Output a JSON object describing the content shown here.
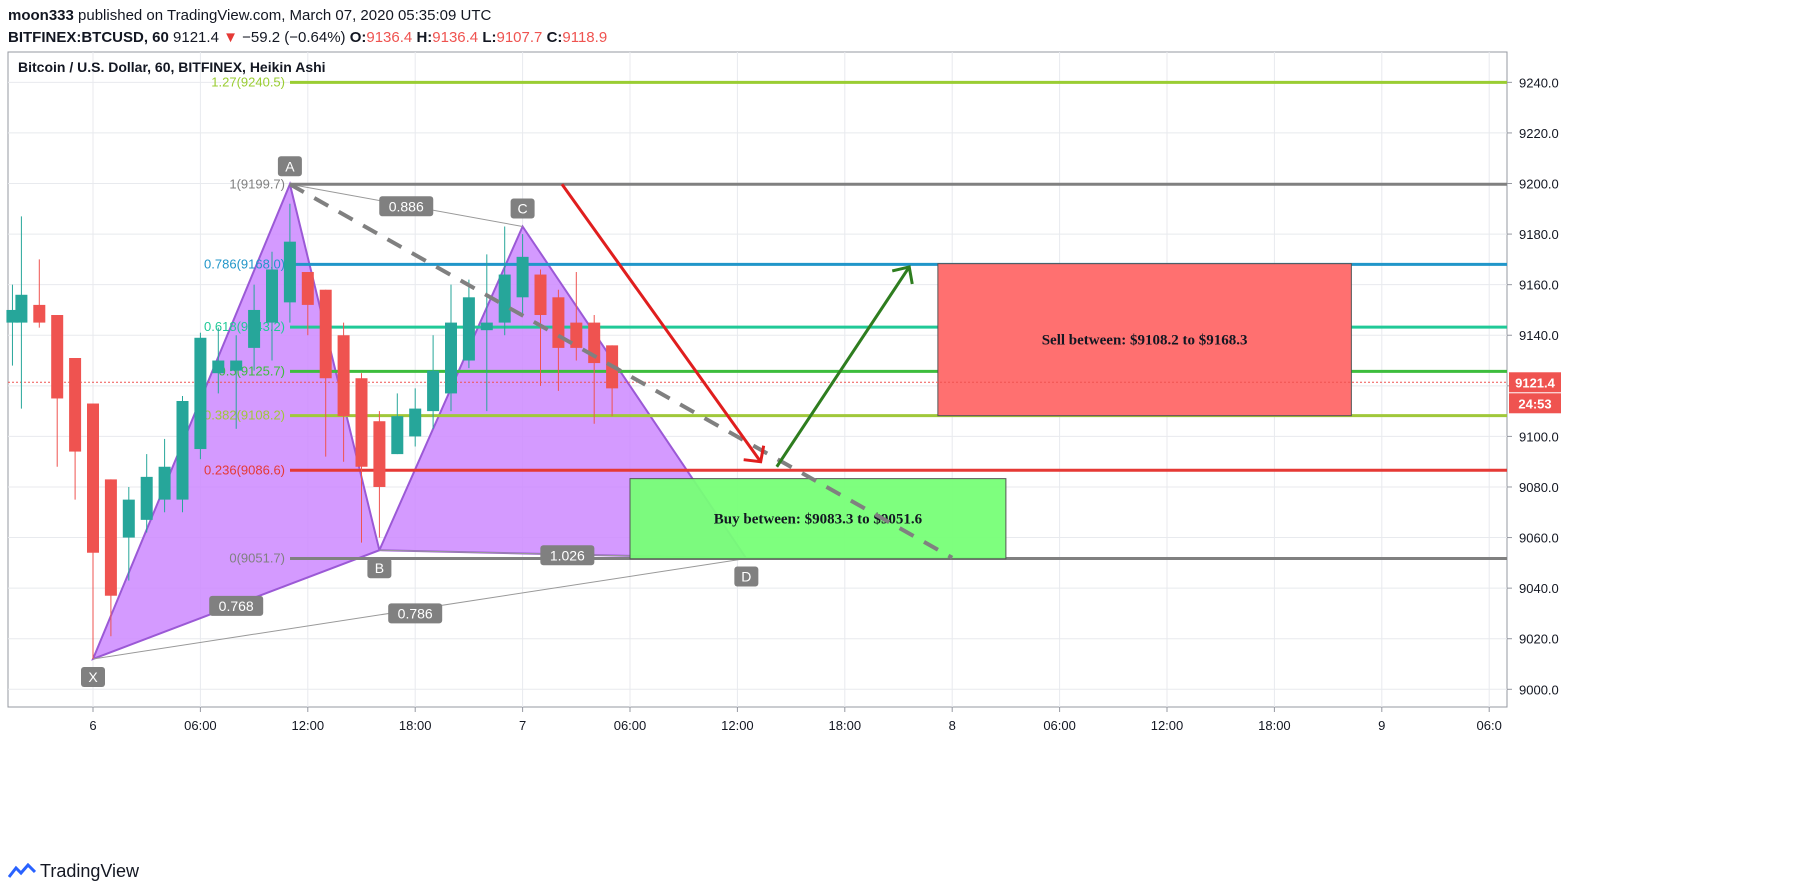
{
  "header": {
    "author": "moon333",
    "published_text": "published on TradingView.com, March 07, 2020 05:35:09 UTC",
    "symbol": "BITFINEX:BTCUSD, 60",
    "last": "9121.4",
    "change": "−59.2 (−0.64%)",
    "o_label": "O:",
    "o_value": "9136.4",
    "h_label": "H:",
    "h_value": "9136.4",
    "l_label": "L:",
    "l_value": "9107.7",
    "c_label": "C:",
    "c_value": "9118.9"
  },
  "legend_title": "Bitcoin / U.S. Dollar, 60, BITFINEX, Heikin Ashi",
  "footer": {
    "brand": "TradingView"
  },
  "price_badges": {
    "last": "9121.4",
    "countdown": "24:53"
  },
  "colors": {
    "bull": "#26a69a",
    "bear": "#ef5350",
    "bull_body_dark": "#5c6bc0",
    "bear_body_dark": "#c2185b",
    "pattern_fill": "#cc88ff",
    "sell_zone": "#ff7070",
    "buy_zone": "#77ff77",
    "fib_0786": "#2196c9",
    "fib_0618": "#20c997",
    "fib_05": "#3dbd3d",
    "fib_0382": "#a0c83a",
    "fib_0236": "#e53935",
    "fib_1": "#808080",
    "fib_0": "#808080",
    "fib_top": "#9acd32"
  },
  "chart_data": {
    "type": "candlestick",
    "title": "Bitcoin / U.S. Dollar, 60, BITFINEX, Heikin Ashi",
    "ylim": [
      8993,
      9252
    ],
    "y_ticks": [
      9000,
      9020,
      9040,
      9060,
      9080,
      9100,
      9120,
      9140,
      9160,
      9180,
      9200,
      9220,
      9240
    ],
    "y_tick_labels": [
      "9000.0",
      "9020.0",
      "9040.0",
      "9060.0",
      "9080.0",
      "9100.0",
      "9120.0",
      "9140.0",
      "9160.0",
      "9180.0",
      "9200.0",
      "9220.0",
      "9240.0"
    ],
    "x_ticks": [
      {
        "bar": 0,
        "label": "6"
      },
      {
        "bar": 6,
        "label": "06:00"
      },
      {
        "bar": 12,
        "label": "12:00"
      },
      {
        "bar": 18,
        "label": "18:00"
      },
      {
        "bar": 24,
        "label": "7"
      },
      {
        "bar": 30,
        "label": "06:00"
      },
      {
        "bar": 36,
        "label": "12:00"
      },
      {
        "bar": 42,
        "label": "18:00"
      },
      {
        "bar": 48,
        "label": "8"
      },
      {
        "bar": 54,
        "label": "06:00"
      },
      {
        "bar": 60,
        "label": "12:00"
      },
      {
        "bar": 66,
        "label": "18:00"
      },
      {
        "bar": 72,
        "label": "9"
      },
      {
        "bar": 78,
        "label": "06:0"
      }
    ],
    "candles": [
      {
        "t": -4.5,
        "o": 9145,
        "h": 9160,
        "l": 9128,
        "c": 9150
      },
      {
        "t": -4,
        "o": 9145,
        "h": 9187,
        "l": 9111,
        "c": 9156
      },
      {
        "t": -3,
        "o": 9152,
        "h": 9170,
        "l": 9143,
        "c": 9145
      },
      {
        "t": -2,
        "o": 9148,
        "h": 9148,
        "l": 9088,
        "c": 9115
      },
      {
        "t": -1,
        "o": 9131,
        "h": 9131,
        "l": 9075,
        "c": 9094
      },
      {
        "t": 0,
        "o": 9113,
        "h": 9113,
        "l": 9012,
        "c": 9054
      },
      {
        "t": 1,
        "o": 9083,
        "h": 9083,
        "l": 9021,
        "c": 9037
      },
      {
        "t": 2,
        "o": 9060,
        "h": 9080,
        "l": 9043,
        "c": 9075
      },
      {
        "t": 3,
        "o": 9067,
        "h": 9093,
        "l": 9062,
        "c": 9084
      },
      {
        "t": 4,
        "o": 9075,
        "h": 9099,
        "l": 9070,
        "c": 9088
      },
      {
        "t": 5,
        "o": 9075,
        "h": 9116,
        "l": 9070,
        "c": 9114
      },
      {
        "t": 6,
        "o": 9095,
        "h": 9141,
        "l": 9091,
        "c": 9139
      },
      {
        "t": 7,
        "o": 9125,
        "h": 9143,
        "l": 9117,
        "c": 9130
      },
      {
        "t": 8,
        "o": 9126,
        "h": 9140,
        "l": 9103,
        "c": 9130
      },
      {
        "t": 9,
        "o": 9135,
        "h": 9160,
        "l": 9126,
        "c": 9150
      },
      {
        "t": 10,
        "o": 9145,
        "h": 9173,
        "l": 9130,
        "c": 9166
      },
      {
        "t": 11,
        "o": 9153,
        "h": 9192,
        "l": 9145,
        "c": 9177
      },
      {
        "t": 12,
        "o": 9165,
        "h": 9165,
        "l": 9140,
        "c": 9152
      },
      {
        "t": 13,
        "o": 9158,
        "h": 9158,
        "l": 9092,
        "c": 9123
      },
      {
        "t": 14,
        "o": 9140,
        "h": 9145,
        "l": 9090,
        "c": 9108
      },
      {
        "t": 15,
        "o": 9123,
        "h": 9125,
        "l": 9058,
        "c": 9088
      },
      {
        "t": 16,
        "o": 9106,
        "h": 9110,
        "l": 9060,
        "c": 9080
      },
      {
        "t": 17,
        "o": 9093,
        "h": 9117,
        "l": 9093,
        "c": 9108
      },
      {
        "t": 18,
        "o": 9100,
        "h": 9119,
        "l": 9096,
        "c": 9111
      },
      {
        "t": 19,
        "o": 9110,
        "h": 9140,
        "l": 9103,
        "c": 9126
      },
      {
        "t": 20,
        "o": 9117,
        "h": 9160,
        "l": 9110,
        "c": 9145
      },
      {
        "t": 21,
        "o": 9130,
        "h": 9162,
        "l": 9127,
        "c": 9155
      },
      {
        "t": 22,
        "o": 9142,
        "h": 9172,
        "l": 9110,
        "c": 9145
      },
      {
        "t": 23,
        "o": 9145,
        "h": 9183,
        "l": 9140,
        "c": 9164
      },
      {
        "t": 24,
        "o": 9155,
        "h": 9180,
        "l": 9148,
        "c": 9171
      },
      {
        "t": 25,
        "o": 9164,
        "h": 9166,
        "l": 9120,
        "c": 9148
      },
      {
        "t": 26,
        "o": 9155,
        "h": 9158,
        "l": 9118,
        "c": 9135
      },
      {
        "t": 27,
        "o": 9145,
        "h": 9165,
        "l": 9130,
        "c": 9135
      },
      {
        "t": 28,
        "o": 9145,
        "h": 9148,
        "l": 9105,
        "c": 9129
      },
      {
        "t": 29,
        "o": 9136,
        "h": 9136,
        "l": 9108,
        "c": 9119
      }
    ],
    "fib_levels": [
      {
        "ratio": "1",
        "value": 9199.7,
        "label": "1(9199.7)",
        "color": "#808080"
      },
      {
        "ratio": "0.786",
        "value": 9168.0,
        "label": "0.786(9168.0)",
        "color": "#2196c9"
      },
      {
        "ratio": "0.618",
        "value": 9143.2,
        "label": "0.618(9143.2)",
        "color": "#20c997"
      },
      {
        "ratio": "0.5",
        "value": 9125.7,
        "label": "0.5(9125.7)",
        "color": "#3dbd3d"
      },
      {
        "ratio": "0.382",
        "value": 9108.2,
        "label": "0.382(9108.2)",
        "color": "#a0c83a"
      },
      {
        "ratio": "0.236",
        "value": 9086.6,
        "label": "0.236(9086.6)",
        "color": "#e53935"
      },
      {
        "ratio": "0",
        "value": 9051.7,
        "label": "0(9051.7)",
        "color": "#808080"
      }
    ],
    "fib_top_value": 9240,
    "fib_top_label": "1.27(9240.5)",
    "harmonic_points": [
      {
        "name": "X",
        "bar": 0,
        "price": 9012
      },
      {
        "name": "A",
        "bar": 11,
        "price": 9199.7
      },
      {
        "name": "B",
        "bar": 16,
        "price": 9055
      },
      {
        "name": "C",
        "bar": 24,
        "price": 9183
      },
      {
        "name": "D",
        "bar": 36.5,
        "price": 9051.7
      }
    ],
    "harmonic_ratios": [
      {
        "label": "0.768",
        "bar": 8,
        "price": 9033
      },
      {
        "label": "0.886",
        "bar": 17.5,
        "price": 9191
      },
      {
        "label": "1.026",
        "bar": 26.5,
        "price": 9053
      },
      {
        "label": "0.786",
        "bar": 18,
        "price": 9030
      }
    ],
    "sell_zone": {
      "text": "Sell between: $9108.2 to $9168.3",
      "low": 9108.2,
      "high": 9168.3,
      "bar_start": 47.2,
      "bar_end": 70.3
    },
    "buy_zone": {
      "text": "Buy between: $9083.3 to $9051.6",
      "low": 9051.6,
      "high": 9083.3,
      "bar_start": 30,
      "bar_end": 51
    },
    "current_price": 9121.4
  }
}
